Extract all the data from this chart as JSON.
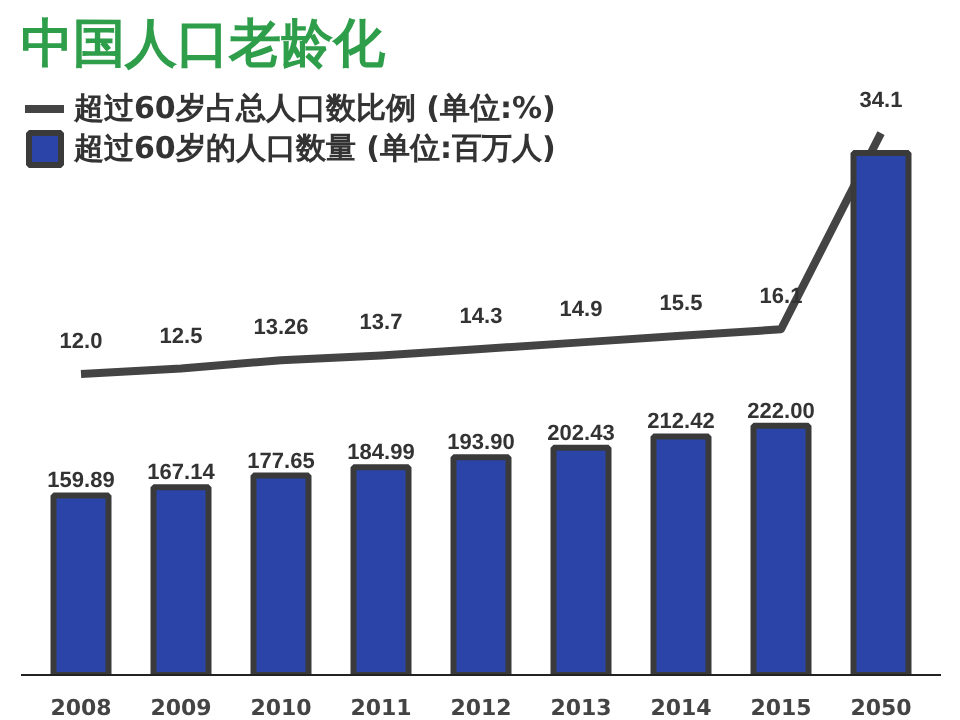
{
  "chart_data": {
    "type": "bar",
    "title": "中国人口老龄化",
    "categories": [
      "2008",
      "2009",
      "2010",
      "2011",
      "2012",
      "2013",
      "2014",
      "2015",
      "2050"
    ],
    "series": [
      {
        "name": "超过60岁占总人口数比例 (单位:%)",
        "type": "line",
        "axis": "y2",
        "color": "#444444",
        "values": [
          12.0,
          12.5,
          13.26,
          13.7,
          14.3,
          14.9,
          15.5,
          16.1,
          34.1
        ],
        "value_labels": [
          "12.0",
          "12.5",
          "13.26",
          "13.7",
          "14.3",
          "14.9",
          "15.5",
          "16.1",
          "34.1"
        ]
      },
      {
        "name": "超过60岁的人口数量 (单位:百万人)",
        "color": "#2a44a8",
        "values": [
          159.89,
          167.14,
          177.65,
          184.99,
          193.9,
          202.43,
          212.42,
          222.0,
          465
        ],
        "value_labels": [
          "159.89",
          "167.14",
          "177.65",
          "184.99",
          "193.90",
          "202.43",
          "212.42",
          "222.00",
          null
        ]
      }
    ],
    "tick_labels": "x",
    "grid": false,
    "legend": "top left"
  }
}
